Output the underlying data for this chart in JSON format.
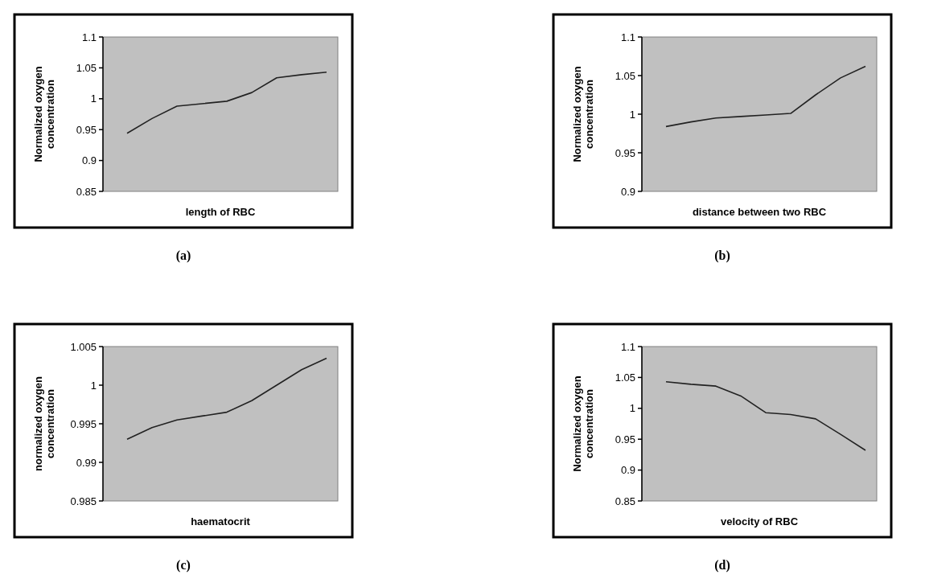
{
  "chart_data": [
    {
      "type": "line",
      "xlabel": "length of RBC",
      "ylabel": "Normalized oxygen concentration",
      "categories": [
        null,
        null,
        null,
        null,
        null,
        null,
        null,
        null,
        null
      ],
      "series": [
        {
          "color": "#222222",
          "values": [
            0.944,
            0.968,
            0.988,
            0.992,
            0.996,
            1.01,
            1.034,
            1.039,
            1.043
          ]
        }
      ],
      "ylim": [
        0.85,
        1.1
      ],
      "yticks": [
        {
          "value": 0.85,
          "label": "0.85"
        },
        {
          "value": 0.9,
          "label": "0.9"
        },
        {
          "value": 0.95,
          "label": "0.95"
        },
        {
          "value": 1,
          "label": "1"
        },
        {
          "value": 1.05,
          "label": "1.05"
        },
        {
          "value": 1.1,
          "label": "1.1"
        }
      ],
      "grid": false,
      "annotations": [
        "(a)"
      ]
    },
    {
      "type": "line",
      "xlabel": "distance between two RBC",
      "ylabel": "Normalized oxygen concentration",
      "categories": [
        null,
        null,
        null,
        null,
        null,
        null,
        null,
        null,
        null
      ],
      "series": [
        {
          "color": "#222222",
          "values": [
            0.984,
            0.99,
            0.995,
            0.997,
            0.999,
            1.001,
            1.025,
            1.047,
            1.062
          ]
        }
      ],
      "ylim": [
        0.9,
        1.1
      ],
      "yticks": [
        {
          "value": 0.9,
          "label": "0.9"
        },
        {
          "value": 0.95,
          "label": "0.95"
        },
        {
          "value": 1,
          "label": "1"
        },
        {
          "value": 1.05,
          "label": "1.05"
        },
        {
          "value": 1.1,
          "label": "1.1"
        }
      ],
      "grid": false,
      "annotations": [
        "(b)"
      ]
    },
    {
      "type": "line",
      "xlabel": "haematocrit",
      "ylabel": "normalized oxygen concentration",
      "categories": [
        null,
        null,
        null,
        null,
        null,
        null,
        null,
        null,
        null
      ],
      "series": [
        {
          "color": "#222222",
          "values": [
            0.993,
            0.9945,
            0.9955,
            0.996,
            0.9965,
            0.998,
            1.0,
            1.002,
            1.0035
          ]
        }
      ],
      "ylim": [
        0.985,
        1.005
      ],
      "yticks": [
        {
          "value": 0.985,
          "label": "0.985"
        },
        {
          "value": 0.99,
          "label": "0.99"
        },
        {
          "value": 0.995,
          "label": "0.995"
        },
        {
          "value": 1,
          "label": "1"
        },
        {
          "value": 1.005,
          "label": "1.005"
        }
      ],
      "grid": false,
      "annotations": [
        "(c)"
      ]
    },
    {
      "type": "line",
      "xlabel": "velocity of RBC",
      "ylabel": "Normalized oxygen concentration",
      "categories": [
        null,
        null,
        null,
        null,
        null,
        null,
        null,
        null,
        null
      ],
      "series": [
        {
          "color": "#222222",
          "values": [
            1.043,
            1.039,
            1.036,
            1.02,
            0.993,
            0.99,
            0.983,
            0.958,
            0.932
          ]
        }
      ],
      "ylim": [
        0.85,
        1.1
      ],
      "yticks": [
        {
          "value": 0.85,
          "label": "0.85"
        },
        {
          "value": 0.9,
          "label": "0.9"
        },
        {
          "value": 0.95,
          "label": "0.95"
        },
        {
          "value": 1,
          "label": "1"
        },
        {
          "value": 1.05,
          "label": "1.05"
        },
        {
          "value": 1.1,
          "label": "1.1"
        }
      ],
      "grid": false,
      "annotations": [
        "(d)"
      ]
    }
  ]
}
